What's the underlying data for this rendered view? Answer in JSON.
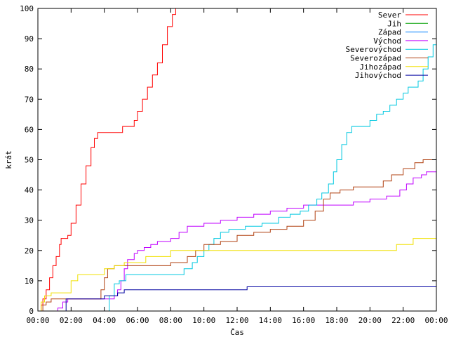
{
  "chart_data": {
    "type": "line",
    "title": "",
    "xlabel": "Čas",
    "ylabel": "krát",
    "xlim": [
      0,
      24
    ],
    "ylim": [
      0,
      100
    ],
    "x_ticks": [
      "00:00",
      "02:00",
      "04:00",
      "06:00",
      "08:00",
      "10:00",
      "12:00",
      "14:00",
      "16:00",
      "18:00",
      "20:00",
      "22:00",
      "00:00"
    ],
    "y_ticks": [
      "0",
      "10",
      "20",
      "30",
      "40",
      "50",
      "60",
      "70",
      "80",
      "90",
      "100"
    ],
    "grid": false,
    "legend_position": "top-right",
    "series": [
      {
        "name": "Sever",
        "color": "#ff0000",
        "points": [
          [
            0.1,
            0
          ],
          [
            0.2,
            2
          ],
          [
            0.3,
            4
          ],
          [
            0.5,
            7
          ],
          [
            0.7,
            11
          ],
          [
            0.9,
            15
          ],
          [
            1.1,
            18
          ],
          [
            1.3,
            22
          ],
          [
            1.4,
            24
          ],
          [
            1.6,
            24
          ],
          [
            1.8,
            25
          ],
          [
            2.0,
            29
          ],
          [
            2.3,
            35
          ],
          [
            2.6,
            42
          ],
          [
            2.9,
            48
          ],
          [
            3.2,
            54
          ],
          [
            3.4,
            57
          ],
          [
            3.6,
            59
          ],
          [
            4.0,
            59
          ],
          [
            5.0,
            59
          ],
          [
            5.1,
            61
          ],
          [
            5.6,
            61
          ],
          [
            5.8,
            63
          ],
          [
            6.0,
            66
          ],
          [
            6.3,
            70
          ],
          [
            6.6,
            74
          ],
          [
            6.9,
            78
          ],
          [
            7.2,
            82
          ],
          [
            7.5,
            88
          ],
          [
            7.8,
            94
          ],
          [
            8.1,
            98
          ],
          [
            8.3,
            100
          ]
        ]
      },
      {
        "name": "Jih",
        "color": "#00a000",
        "points": []
      },
      {
        "name": "Západ",
        "color": "#0080ff",
        "points": []
      },
      {
        "name": "Východ",
        "color": "#c000ff",
        "points": [
          [
            1.1,
            0
          ],
          [
            1.2,
            1
          ],
          [
            1.5,
            3
          ],
          [
            1.8,
            4
          ],
          [
            4.0,
            4
          ],
          [
            4.6,
            5
          ],
          [
            4.8,
            7
          ],
          [
            5.0,
            10
          ],
          [
            5.2,
            14
          ],
          [
            5.4,
            17
          ],
          [
            5.8,
            19
          ],
          [
            6.0,
            20
          ],
          [
            6.4,
            21
          ],
          [
            6.8,
            22
          ],
          [
            7.2,
            23
          ],
          [
            8.0,
            24
          ],
          [
            8.5,
            26
          ],
          [
            9.0,
            28
          ],
          [
            10.0,
            29
          ],
          [
            11.0,
            30
          ],
          [
            12.0,
            31
          ],
          [
            13.0,
            32
          ],
          [
            14.0,
            33
          ],
          [
            15.0,
            34
          ],
          [
            16.0,
            35
          ],
          [
            17.0,
            35
          ],
          [
            18.0,
            35
          ],
          [
            19.0,
            36
          ],
          [
            20.0,
            37
          ],
          [
            21.0,
            38
          ],
          [
            21.8,
            40
          ],
          [
            22.2,
            42
          ],
          [
            22.6,
            44
          ],
          [
            23.1,
            45
          ],
          [
            23.4,
            46
          ],
          [
            24.0,
            46
          ]
        ]
      },
      {
        "name": "Severovýchod",
        "color": "#00c8e0",
        "points": [
          [
            4.1,
            0
          ],
          [
            4.3,
            5
          ],
          [
            4.6,
            9
          ],
          [
            4.9,
            10
          ],
          [
            5.3,
            12
          ],
          [
            8.5,
            12
          ],
          [
            8.8,
            14
          ],
          [
            9.3,
            16
          ],
          [
            9.6,
            18
          ],
          [
            10.0,
            20
          ],
          [
            10.3,
            22
          ],
          [
            10.6,
            24
          ],
          [
            11.0,
            26
          ],
          [
            11.5,
            27
          ],
          [
            12.5,
            28
          ],
          [
            13.5,
            29
          ],
          [
            14.5,
            31
          ],
          [
            15.2,
            32
          ],
          [
            15.8,
            33
          ],
          [
            16.3,
            35
          ],
          [
            16.8,
            37
          ],
          [
            17.1,
            39
          ],
          [
            17.5,
            42
          ],
          [
            17.8,
            46
          ],
          [
            18.0,
            50
          ],
          [
            18.3,
            55
          ],
          [
            18.6,
            59
          ],
          [
            18.9,
            61
          ],
          [
            19.5,
            61
          ],
          [
            20.0,
            63
          ],
          [
            20.4,
            65
          ],
          [
            20.8,
            66
          ],
          [
            21.2,
            68
          ],
          [
            21.6,
            70
          ],
          [
            22.0,
            72
          ],
          [
            22.3,
            74
          ],
          [
            22.9,
            76
          ],
          [
            23.2,
            80
          ],
          [
            23.5,
            84
          ],
          [
            23.8,
            88
          ],
          [
            24.0,
            88
          ]
        ]
      },
      {
        "name": "Severozápad",
        "color": "#b04010",
        "points": [
          [
            0.2,
            0
          ],
          [
            0.3,
            2
          ],
          [
            0.5,
            3
          ],
          [
            0.8,
            4
          ],
          [
            3.6,
            4
          ],
          [
            3.8,
            7
          ],
          [
            4.0,
            11
          ],
          [
            4.2,
            14
          ],
          [
            4.6,
            15
          ],
          [
            7.7,
            15
          ],
          [
            8.0,
            16
          ],
          [
            9.0,
            18
          ],
          [
            9.5,
            20
          ],
          [
            10.0,
            22
          ],
          [
            11.0,
            23
          ],
          [
            12.0,
            25
          ],
          [
            13.0,
            26
          ],
          [
            14.0,
            27
          ],
          [
            15.0,
            28
          ],
          [
            16.0,
            30
          ],
          [
            16.7,
            33
          ],
          [
            17.2,
            37
          ],
          [
            17.6,
            39
          ],
          [
            18.2,
            40
          ],
          [
            19.0,
            41
          ],
          [
            20.0,
            41
          ],
          [
            20.8,
            43
          ],
          [
            21.3,
            45
          ],
          [
            22.0,
            47
          ],
          [
            22.7,
            49
          ],
          [
            23.2,
            50
          ],
          [
            24.0,
            50
          ]
        ]
      },
      {
        "name": "Jihozápad",
        "color": "#f0e000",
        "points": [
          [
            0.1,
            0
          ],
          [
            0.2,
            3
          ],
          [
            0.4,
            5
          ],
          [
            0.8,
            6
          ],
          [
            1.6,
            6
          ],
          [
            2.0,
            10
          ],
          [
            2.4,
            12
          ],
          [
            3.6,
            12
          ],
          [
            4.0,
            14
          ],
          [
            4.6,
            15
          ],
          [
            5.2,
            16
          ],
          [
            6.5,
            18
          ],
          [
            8.0,
            20
          ],
          [
            12.0,
            20
          ],
          [
            16.0,
            20
          ],
          [
            21.2,
            20
          ],
          [
            21.6,
            22
          ],
          [
            22.6,
            24
          ],
          [
            24.0,
            24
          ]
        ]
      },
      {
        "name": "Jihovýchod",
        "color": "#0000a0",
        "points": [
          [
            1.5,
            0
          ],
          [
            1.7,
            4
          ],
          [
            3.8,
            4
          ],
          [
            4.0,
            5
          ],
          [
            4.8,
            6
          ],
          [
            5.2,
            7
          ],
          [
            12.3,
            7
          ],
          [
            12.6,
            8
          ],
          [
            24.0,
            8
          ]
        ]
      }
    ]
  }
}
